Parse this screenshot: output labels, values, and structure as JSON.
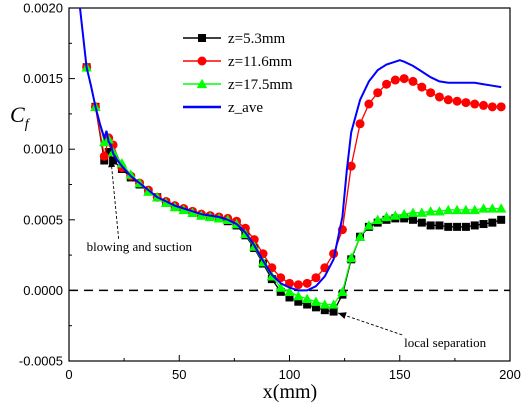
{
  "chart_data": {
    "type": "line",
    "xlabel": "x(mm)",
    "ylabel": "C",
    "ylabel_sub": "f",
    "xlim": [
      0,
      200
    ],
    "ylim": [
      -0.0005,
      0.002
    ],
    "xticks": [
      0,
      50,
      100,
      150,
      200
    ],
    "xtick_labels": [
      "0",
      "50",
      "100",
      "150",
      "200"
    ],
    "yticks": [
      -0.0005,
      0,
      0.0005,
      0.001,
      0.0015,
      0.002
    ],
    "ytick_labels": [
      "-0.0005",
      "0.0000",
      "0.0005",
      "0.0010",
      "0.0015",
      "0.0020"
    ],
    "legend_position": "top-center",
    "grid": false,
    "zero_line": {
      "y": 0,
      "style": "dashed",
      "color": "#000000"
    },
    "series": [
      {
        "name": "z=5.3mm",
        "color": "#000000",
        "marker": "square",
        "x": [
          8,
          12,
          16,
          18,
          20,
          24,
          28,
          32,
          36,
          40,
          44,
          48,
          52,
          56,
          60,
          64,
          68,
          72,
          76,
          80,
          84,
          88,
          92,
          96,
          100,
          104,
          108,
          112,
          116,
          120,
          124,
          128,
          132,
          136,
          140,
          144,
          148,
          152,
          156,
          160,
          164,
          168,
          172,
          176,
          180,
          184,
          188,
          192,
          196
        ],
        "y": [
          0.00158,
          0.0013,
          0.00092,
          0.00098,
          0.00092,
          0.00086,
          0.0008,
          0.00075,
          0.0007,
          0.00066,
          0.00062,
          0.00059,
          0.00057,
          0.00055,
          0.00053,
          0.00052,
          0.00051,
          0.00049,
          0.00046,
          0.00039,
          0.0003,
          0.00019,
          8e-05,
          -1e-05,
          -5e-05,
          -8e-05,
          -0.0001,
          -0.00012,
          -0.00014,
          -0.00015,
          -3e-05,
          0.00022,
          0.00038,
          0.00045,
          0.00048,
          0.0005,
          0.00051,
          0.00051,
          0.0005,
          0.00048,
          0.00046,
          0.00046,
          0.00045,
          0.00045,
          0.00045,
          0.00046,
          0.00047,
          0.00048,
          0.0005
        ]
      },
      {
        "name": "z=11.6mm",
        "color": "#ff0000",
        "marker": "circle",
        "x": [
          8,
          12,
          16,
          18,
          20,
          24,
          28,
          32,
          36,
          40,
          44,
          48,
          52,
          56,
          60,
          64,
          68,
          72,
          76,
          80,
          84,
          88,
          92,
          96,
          100,
          104,
          108,
          112,
          116,
          120,
          124,
          128,
          132,
          136,
          140,
          144,
          148,
          152,
          156,
          160,
          164,
          168,
          172,
          176,
          180,
          184,
          188,
          192,
          196
        ],
        "y": [
          0.00158,
          0.0013,
          0.00095,
          0.00108,
          0.00103,
          0.00087,
          0.00081,
          0.00076,
          0.00071,
          0.00066,
          0.00063,
          0.0006,
          0.00058,
          0.00056,
          0.00054,
          0.00053,
          0.00052,
          0.00051,
          0.00049,
          0.00044,
          0.00036,
          0.00026,
          0.00016,
          9e-05,
          5e-05,
          4e-05,
          5e-05,
          9e-05,
          0.00016,
          0.00026,
          0.00043,
          0.00088,
          0.00118,
          0.00132,
          0.0014,
          0.00146,
          0.00149,
          0.0015,
          0.00148,
          0.00144,
          0.0014,
          0.00137,
          0.00135,
          0.00134,
          0.00133,
          0.00132,
          0.00131,
          0.0013,
          0.0013
        ]
      },
      {
        "name": "z=17.5mm",
        "color": "#00ff00",
        "marker": "triangle",
        "x": [
          8,
          12,
          16,
          18,
          20,
          24,
          28,
          32,
          36,
          40,
          44,
          48,
          52,
          56,
          60,
          64,
          68,
          72,
          76,
          80,
          84,
          88,
          92,
          96,
          100,
          104,
          108,
          112,
          116,
          120,
          124,
          128,
          132,
          136,
          140,
          144,
          148,
          152,
          156,
          160,
          164,
          168,
          172,
          176,
          180,
          184,
          188,
          192,
          196
        ],
        "y": [
          0.00158,
          0.0013,
          0.00105,
          0.00107,
          0.00098,
          0.0009,
          0.00082,
          0.00076,
          0.0007,
          0.00066,
          0.00062,
          0.00059,
          0.00057,
          0.00055,
          0.00053,
          0.00052,
          0.00051,
          0.0005,
          0.00047,
          0.0004,
          0.00031,
          0.0002,
          0.0001,
          2e-05,
          -1e-05,
          -4e-05,
          -6e-05,
          -8e-05,
          -0.0001,
          -0.0001,
          -1e-05,
          0.00023,
          0.00038,
          0.00046,
          0.0005,
          0.00052,
          0.00053,
          0.00054,
          0.00055,
          0.00055,
          0.00056,
          0.00056,
          0.00057,
          0.00057,
          0.00057,
          0.00057,
          0.00058,
          0.00058,
          0.00058
        ]
      },
      {
        "name": "z_ave",
        "color": "#0000ff",
        "marker": "none",
        "x": [
          5,
          8,
          10,
          12,
          14,
          16,
          17,
          18,
          19,
          20,
          22,
          24,
          28,
          32,
          36,
          40,
          44,
          48,
          52,
          56,
          60,
          64,
          68,
          72,
          76,
          80,
          84,
          88,
          92,
          96,
          100,
          104,
          108,
          112,
          116,
          120,
          124,
          126,
          128,
          132,
          136,
          140,
          144,
          148,
          150,
          152,
          156,
          160,
          164,
          168,
          172,
          176,
          180,
          184,
          188,
          192,
          196
        ],
        "y": [
          0.002,
          0.00158,
          0.00145,
          0.0013,
          0.00118,
          0.00108,
          0.00113,
          0.00105,
          0.00103,
          0.00097,
          0.00092,
          0.00088,
          0.00081,
          0.00076,
          0.00071,
          0.00066,
          0.00063,
          0.0006,
          0.00058,
          0.00056,
          0.00054,
          0.00053,
          0.00052,
          0.0005,
          0.00047,
          0.00041,
          0.00032,
          0.00021,
          0.00011,
          5e-05,
          2e-05,
          0.0,
          0.0,
          3e-05,
          0.0001,
          0.00022,
          0.00052,
          0.00085,
          0.00112,
          0.00135,
          0.00148,
          0.00156,
          0.0016,
          0.00162,
          0.00163,
          0.00162,
          0.00159,
          0.00155,
          0.00151,
          0.00148,
          0.00147,
          0.00147,
          0.00147,
          0.00147,
          0.00146,
          0.00145,
          0.00144
        ]
      }
    ],
    "annotations": [
      {
        "text": "blowing and suction",
        "anchor_x": 19,
        "anchor_y": 0.00093,
        "text_x": 8,
        "text_y": 0.00028
      },
      {
        "text": "local separation",
        "anchor_x": 122,
        "anchor_y": -0.00016,
        "text_x": 152,
        "text_y": -0.0004
      }
    ]
  }
}
